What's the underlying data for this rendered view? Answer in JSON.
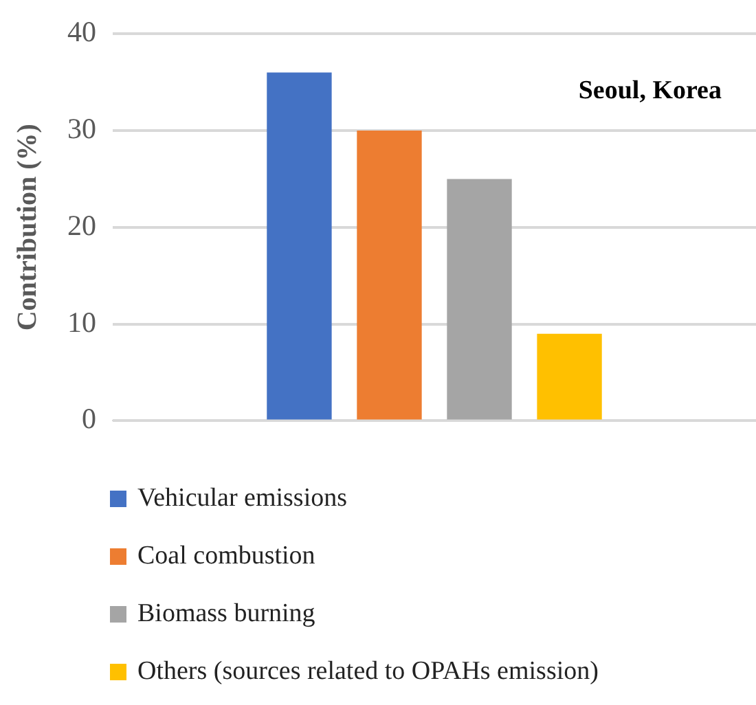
{
  "chart_data": {
    "type": "bar",
    "ylabel": "Contribution (%)",
    "categories": [
      null
    ],
    "series": [
      {
        "name": "Vehicular emissions",
        "color": "#4472c4",
        "values": [
          36
        ]
      },
      {
        "name": "Coal combustion",
        "color": "#ed7d31",
        "values": [
          30
        ]
      },
      {
        "name": "Biomass burning",
        "color": "#a5a5a5",
        "values": [
          25
        ]
      },
      {
        "name": "Others (sources related to OPAHs emission)",
        "color": "#ffc000",
        "values": [
          9
        ]
      }
    ],
    "ylim": [
      0,
      40
    ],
    "yticks": [
      0,
      10,
      20,
      30,
      40
    ],
    "grid": "y",
    "legend": "bottom",
    "annotations": [
      "Seoul, Korea"
    ]
  }
}
